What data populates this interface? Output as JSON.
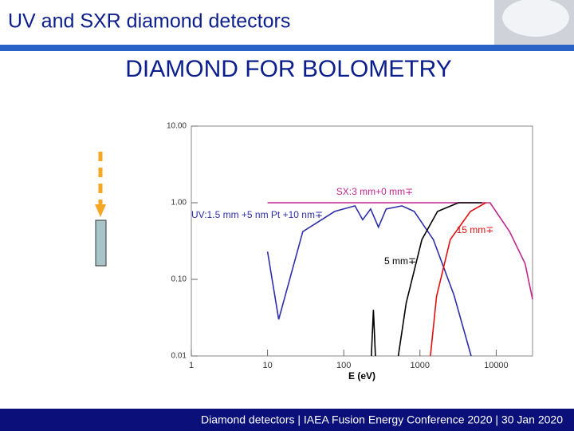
{
  "header": {
    "title": "UV and SXR diamond detectors"
  },
  "footer": {
    "text": "Diamond detectors | IAEA Fusion Energy Conference 2020 | 30 Jan 2020"
  },
  "chart_data": {
    "type": "line",
    "title": "DIAMOND FOR BOLOMETRY",
    "x_label": "E (eV)",
    "xscale": "log",
    "yscale": "log",
    "xlim": [
      1,
      30000
    ],
    "xticks": [
      1,
      10,
      100,
      1000,
      10000
    ],
    "ylim": [
      0.01,
      10
    ],
    "yticks": [
      {
        "value": 10,
        "label": "10.00"
      },
      {
        "value": 1,
        "label": "1.00"
      },
      {
        "value": 0.1,
        "label": "0.10"
      },
      0.01
    ],
    "series": [
      {
        "name": "UV:1.5 mm +5 nm Pt +10 nm∓",
        "color": "#2e2ea8",
        "x": [
          10,
          14,
          29,
          76,
          140,
          177,
          225,
          285,
          360,
          580,
          840,
          1500,
          2800,
          4700
        ],
        "values": [
          0.23,
          0.03,
          0.42,
          0.77,
          0.91,
          0.6,
          0.83,
          0.48,
          0.83,
          0.91,
          0.77,
          0.33,
          0.062,
          0.01
        ]
      },
      {
        "name": "SX:3 mm+0 mm∓",
        "color": "#c0288f",
        "x": [
          10,
          1000,
          8300,
          15000,
          24000,
          30000
        ],
        "values": [
          1,
          1,
          1,
          0.42,
          0.16,
          0.055
        ]
      },
      {
        "name": "5 mm∓",
        "color": "#000000",
        "x": [
          230,
          245,
          260,
          400,
          520,
          660,
          1060,
          1700,
          3200,
          6500
        ],
        "values": [
          0.01,
          0.04,
          0.01,
          null,
          0.01,
          0.049,
          0.33,
          0.77,
          1,
          1
        ]
      },
      {
        "name": "15 mm∓",
        "color": "#e01010",
        "x": [
          1370,
          1650,
          2500,
          4600,
          7300
        ],
        "values": [
          0.01,
          0.06,
          0.33,
          0.77,
          1
        ]
      }
    ]
  }
}
